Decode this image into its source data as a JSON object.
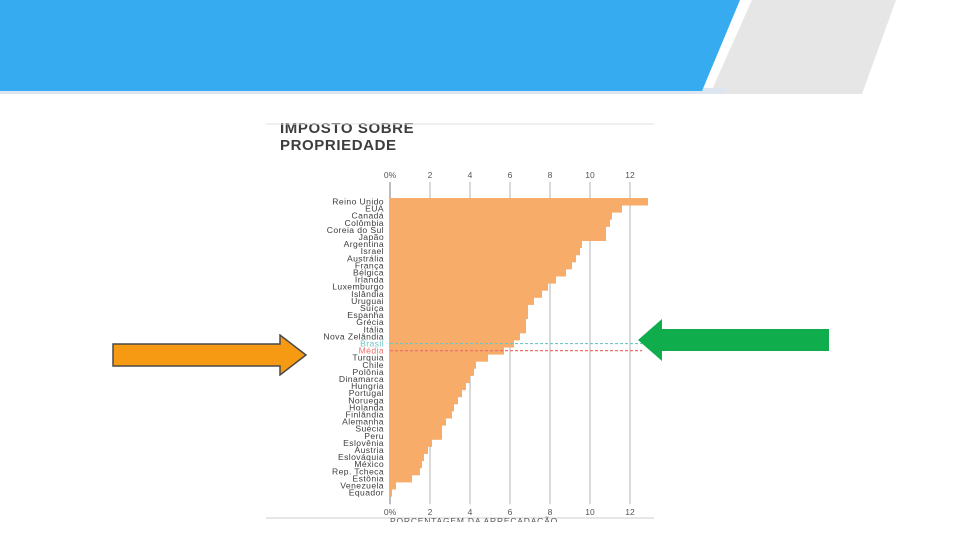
{
  "colors": {
    "banner_blue": "#36abf0",
    "banner_gray": "#e6e6e6",
    "bar": "#f7ad69",
    "brasil": "#6fc6c2",
    "media": "#ef6f6c",
    "arrow_orange": "#f59a12",
    "arrow_green": "#0fad4c",
    "axis_text": "#555555",
    "label_text": "#3d3d3d"
  },
  "arrows": {
    "left": {
      "icon": "right-arrow-icon",
      "color": "#f59a12"
    },
    "right": {
      "icon": "left-arrow-icon",
      "color": "#0fad4c"
    }
  },
  "chart_data": {
    "type": "bar",
    "orientation": "horizontal",
    "title_lines": [
      "IMPOSTO SOBRE",
      "PROPRIEDADE"
    ],
    "xlabel": "PORCENTAGEM DA ARRECADAÇÃO",
    "xlim": [
      0,
      13
    ],
    "xticks": [
      0,
      2,
      4,
      6,
      8,
      10,
      12
    ],
    "xtick_labels": [
      "0%",
      "2",
      "4",
      "6",
      "8",
      "10",
      "12"
    ],
    "bottom_xtick_labels": [
      "0%",
      "2",
      "4",
      "6",
      "8",
      "10",
      "12"
    ],
    "grid": true,
    "categories": [
      "Reino Unido",
      "EUA",
      "Canadá",
      "Colômbia",
      "Coreia do Sul",
      "Japão",
      "Argentina",
      "Israel",
      "Austrália",
      "França",
      "Bélgica",
      "Irlanda",
      "Luxemburgo",
      "Islândia",
      "Uruguai",
      "Suíça",
      "Espanha",
      "Grécia",
      "Itália",
      "Nova Zelândia",
      "Brasil",
      "Média",
      "Turquia",
      "Chile",
      "Polônia",
      "Dinamarca",
      "Hungria",
      "Portugal",
      "Noruega",
      "Holanda",
      "Finlândia",
      "Alemanha",
      "Suécia",
      "Peru",
      "Eslovênia",
      "Áustria",
      "Eslováquia",
      "México",
      "Rep. Tcheca",
      "Estônia",
      "Venezuela",
      "Equador"
    ],
    "values": [
      12.9,
      11.6,
      11.1,
      11.0,
      10.8,
      10.8,
      9.6,
      9.5,
      9.3,
      9.1,
      8.8,
      8.3,
      7.9,
      7.6,
      7.2,
      6.9,
      6.9,
      6.8,
      6.8,
      6.5,
      6.2,
      5.7,
      4.9,
      4.3,
      4.2,
      4.0,
      3.8,
      3.6,
      3.4,
      3.2,
      3.1,
      2.8,
      2.6,
      2.6,
      2.1,
      1.9,
      1.7,
      1.6,
      1.5,
      1.1,
      0.3,
      0.1
    ],
    "highlight": {
      "Brasil": "#6fc6c2",
      "Média": "#ef6f6c"
    },
    "reference_lines": [
      {
        "label": "Brasil",
        "value": 6.2,
        "style": "dashed",
        "color": "#6fc6c2"
      },
      {
        "label": "Média",
        "value": 5.7,
        "style": "dashed",
        "color": "#ef6f6c"
      }
    ]
  }
}
